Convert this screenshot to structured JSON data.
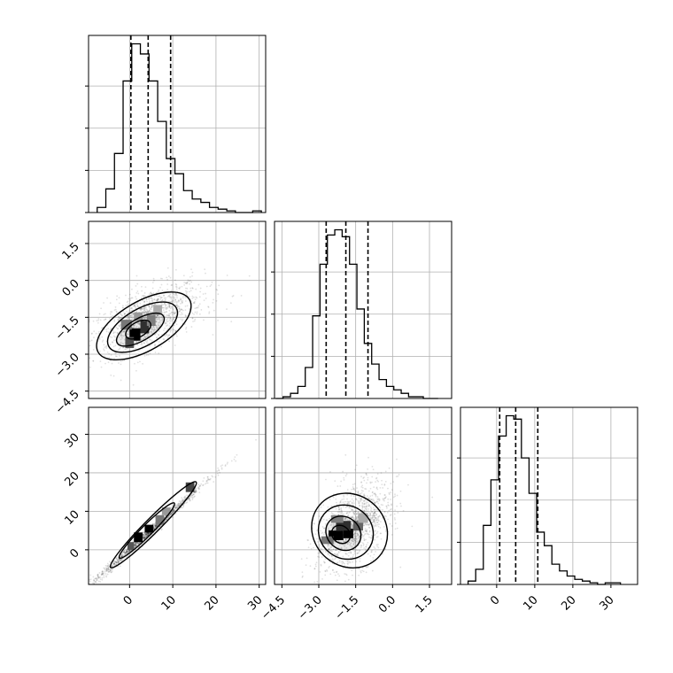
{
  "chart_data": [
    {
      "type": "histogram",
      "panel": "p0_hist",
      "quantiles": [
        0.3,
        4.3,
        9.5
      ],
      "xlim": [
        -9.5,
        31.5
      ],
      "bin_edges": [
        -7.5,
        -5.5,
        -3.5,
        -1.5,
        0.5,
        2.5,
        4.5,
        6.5,
        8.5,
        10.5,
        12.5,
        14.5,
        16.5,
        18.5,
        20.5,
        22.5,
        24.5,
        26.5,
        28.5,
        30.5
      ],
      "counts": [
        3,
        14,
        35,
        78,
        100,
        94,
        78,
        54,
        32,
        23,
        13,
        8,
        6,
        3,
        2,
        1,
        0,
        0,
        1
      ],
      "grid": true
    },
    {
      "type": "scatter-density",
      "panel": "p1_vs_p0",
      "xlim": [
        -9.5,
        31.5
      ],
      "ylim": [
        -4.8,
        2.4
      ],
      "ytick_labels": [
        "1.5",
        "0.0",
        "−1.5",
        "−3.0",
        "−4.5"
      ],
      "ytick_values": [
        1.5,
        0.0,
        -1.5,
        -3.0,
        -4.5
      ],
      "center": [
        2.0,
        -1.9
      ],
      "grid": true
    },
    {
      "type": "histogram",
      "panel": "p1_hist",
      "quantiles": [
        -2.7,
        -1.9,
        -1.0
      ],
      "xlim": [
        -4.8,
        2.4
      ],
      "bin_edges": [
        -4.75,
        -4.45,
        -4.15,
        -3.85,
        -3.55,
        -3.25,
        -2.95,
        -2.65,
        -2.35,
        -2.05,
        -1.75,
        -1.45,
        -1.15,
        -0.85,
        -0.55,
        -0.25,
        0.05,
        0.35,
        0.65,
        0.95,
        1.25,
        1.55,
        1.85
      ],
      "counts": [
        0,
        1,
        3,
        7,
        18,
        48,
        78,
        95,
        98,
        94,
        78,
        52,
        32,
        20,
        11,
        7,
        5,
        3,
        1,
        1,
        0,
        0
      ],
      "grid": true
    },
    {
      "type": "scatter-density",
      "panel": "p2_vs_p0",
      "xlim": [
        -9.5,
        31.5
      ],
      "ylim": [
        -9.0,
        37.0
      ],
      "xtick_labels": [
        "0",
        "10",
        "20",
        "30"
      ],
      "xtick_values": [
        0,
        10,
        20,
        30
      ],
      "ytick_labels": [
        "30",
        "20",
        "10",
        "0"
      ],
      "ytick_values": [
        30,
        20,
        10,
        0
      ],
      "center": [
        4.0,
        5.0
      ],
      "grid": true
    },
    {
      "type": "scatter-density",
      "panel": "p2_vs_p1",
      "xlim": [
        -4.8,
        2.4
      ],
      "ylim": [
        -9.0,
        37.0
      ],
      "xtick_labels": [
        "−4.5",
        "−3.0",
        "−1.5",
        "0.0",
        "1.5"
      ],
      "xtick_values": [
        -4.5,
        -3.0,
        -1.5,
        0.0,
        1.5
      ],
      "center": [
        -2.0,
        4.0
      ],
      "grid": true
    },
    {
      "type": "histogram",
      "panel": "p2_hist",
      "quantiles": [
        0.8,
        5.0,
        10.8
      ],
      "xlim": [
        -9.5,
        37.0
      ],
      "xtick_labels": [
        "0",
        "10",
        "20",
        "30"
      ],
      "xtick_values": [
        0,
        10,
        20,
        30
      ],
      "bin_edges": [
        -7.5,
        -5.5,
        -3.5,
        -1.5,
        0.5,
        2.5,
        4.5,
        6.5,
        8.5,
        10.5,
        12.5,
        14.5,
        16.5,
        18.5,
        20.5,
        22.5,
        24.5,
        26.5,
        28.5,
        30.5,
        32.5
      ],
      "counts": [
        2,
        9,
        35,
        62,
        88,
        100,
        98,
        75,
        54,
        31,
        23,
        12,
        8,
        5,
        3,
        2,
        1,
        0,
        1,
        1
      ],
      "grid": true
    }
  ],
  "colors": {
    "line": "#000000",
    "grid": "#b0b0b0",
    "points": "#000000"
  }
}
